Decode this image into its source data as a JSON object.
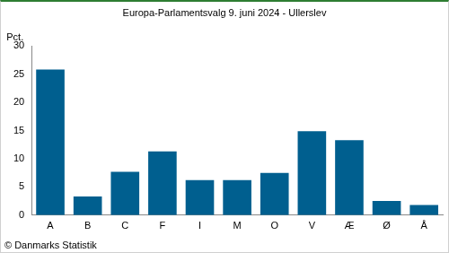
{
  "chart_data": {
    "type": "bar",
    "title": "Europa-Parlamentsvalg 9. juni 2024 - Ullerslev",
    "y_label": "Pct.",
    "source": "© Danmarks Statistik",
    "categories": [
      "A",
      "B",
      "C",
      "F",
      "I",
      "M",
      "O",
      "V",
      "Æ",
      "Ø",
      "Å"
    ],
    "values": [
      25.8,
      3.3,
      7.7,
      11.3,
      6.2,
      6.2,
      7.5,
      14.9,
      13.3,
      2.5,
      1.8
    ],
    "color": "#005f8f",
    "ylim": [
      0,
      30
    ],
    "yticks": [
      0,
      5,
      10,
      15,
      20,
      25,
      30
    ],
    "grid": false
  }
}
